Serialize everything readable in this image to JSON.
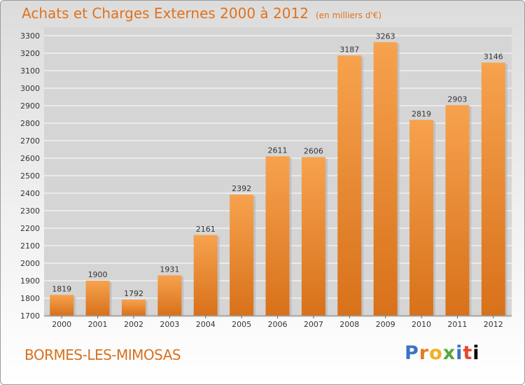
{
  "chart_data": {
    "type": "bar",
    "title": "Achats et Charges Externes 2000 à 2012",
    "subtitle": "(en milliers d'€)",
    "categories": [
      "2000",
      "2001",
      "2002",
      "2003",
      "2004",
      "2005",
      "2006",
      "2007",
      "2008",
      "2009",
      "2010",
      "2011",
      "2012"
    ],
    "values": [
      1819,
      1900,
      1792,
      1931,
      2161,
      2392,
      2611,
      2606,
      3187,
      3263,
      2819,
      2903,
      3146
    ],
    "ylim": [
      1700,
      3300
    ],
    "yticks": [
      1700,
      1800,
      1900,
      2000,
      2100,
      2200,
      2300,
      2400,
      2500,
      2600,
      2700,
      2800,
      2900,
      3000,
      3100,
      3200,
      3300
    ],
    "grid": true,
    "bar_color": "#f0882c"
  },
  "footer": {
    "commune": "BORMES-LES-MIMOSAS",
    "brand_letters": [
      "P",
      "r",
      "o",
      "x",
      "i",
      "t",
      "i"
    ]
  }
}
